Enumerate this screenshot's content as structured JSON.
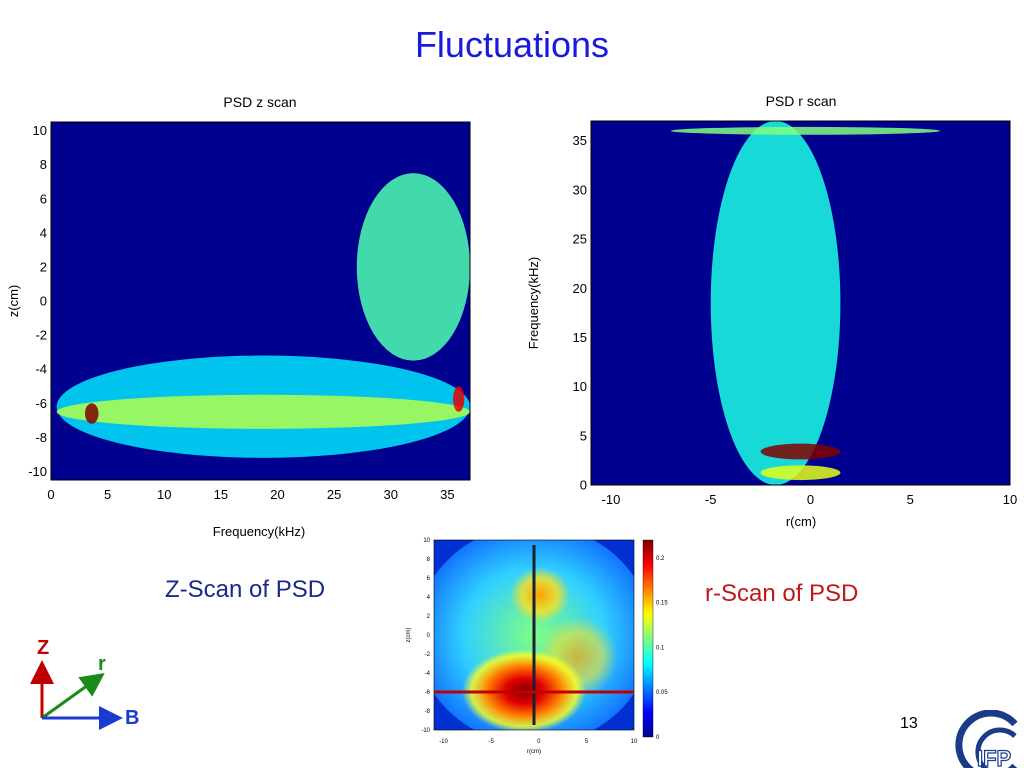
{
  "slide": {
    "title": "Fluctuations",
    "caption_z": "Z-Scan of PSD",
    "caption_r": "r-Scan of PSD",
    "page_number": "13",
    "axes_labels": {
      "z": "Z",
      "r": "r",
      "b": "B"
    },
    "axes_colors": {
      "z": "#c00000",
      "r": "#1a8a1a",
      "b": "#1a3ad0"
    },
    "logo_text": "IFP",
    "colors": {
      "title": "#1a1adc",
      "caption_z": "#1a2a8a",
      "caption_r": "#c01818",
      "jet_background": "#00008f"
    }
  },
  "chart_data": [
    {
      "type": "heatmap",
      "title": "PSD z scan",
      "xlabel": "Frequency(kHz)",
      "ylabel": "z(cm)",
      "xlim": [
        0,
        37
      ],
      "ylim": [
        -10.5,
        10.5
      ],
      "xticks": [
        "0",
        "5",
        "10",
        "15",
        "20",
        "25",
        "30",
        "35"
      ],
      "yticks": [
        "10",
        "8",
        "6",
        "4",
        "2",
        "0",
        "-2",
        "-4",
        "-6",
        "-8",
        "-10"
      ],
      "colormap": "jet",
      "features": [
        {
          "name": "edge band",
          "x": [
            0.5,
            37
          ],
          "y": [
            -9.2,
            -3.2
          ],
          "level": 0.35
        },
        {
          "name": "edge band core",
          "x": [
            0.5,
            37
          ],
          "y": [
            -7.5,
            -5.5
          ],
          "level": 0.55
        },
        {
          "name": "upper region",
          "x": [
            27,
            37
          ],
          "y": [
            -3.5,
            7.5
          ],
          "level": 0.45
        },
        {
          "name": "hot spot 3.5kHz",
          "x": [
            3,
            4.2
          ],
          "y": [
            -7.2,
            -6
          ],
          "level": 1.0
        },
        {
          "name": "hot spot 36kHz",
          "x": [
            35.5,
            36.5
          ],
          "y": [
            -6.5,
            -5
          ],
          "level": 0.9
        }
      ]
    },
    {
      "type": "heatmap",
      "title": "PSD r scan",
      "xlabel": "r(cm)",
      "ylabel": "Frequency(kHz)",
      "xlim": [
        -11,
        10
      ],
      "ylim": [
        0,
        37
      ],
      "xticks": [
        "-10",
        "-5",
        "0",
        "5",
        "10"
      ],
      "yticks": [
        "35",
        "30",
        "25",
        "20",
        "15",
        "10",
        "5",
        "0"
      ],
      "colormap": "jet",
      "features": [
        {
          "name": "central column",
          "x": [
            -5,
            1.5
          ],
          "y": [
            0,
            37
          ],
          "level": 0.4
        },
        {
          "name": "36kHz line",
          "x": [
            -7,
            6.5
          ],
          "y": [
            35.6,
            36.4
          ],
          "level": 0.5
        },
        {
          "name": "low-frequency peak",
          "x": [
            -2.5,
            1.5
          ],
          "y": [
            2.6,
            4.2
          ],
          "level": 1.0
        },
        {
          "name": "1kHz band",
          "x": [
            -2.5,
            1.5
          ],
          "y": [
            0.5,
            2
          ],
          "level": 0.6
        }
      ]
    },
    {
      "type": "heatmap",
      "title": "",
      "xlabel": "r(cm)",
      "ylabel": "z(cm)",
      "xlim": [
        -11,
        10
      ],
      "ylim": [
        -10,
        10
      ],
      "xticks": [
        "-10",
        "-5",
        "0",
        "5",
        "10"
      ],
      "yticks": [
        "10",
        "8",
        "6",
        "4",
        "2",
        "0",
        "-2",
        "-4",
        "-6",
        "-8",
        "-10"
      ],
      "colormap": "jet",
      "colorbar": {
        "ticks": [
          "0.2",
          "0.15",
          "0.1",
          "0.05",
          "0"
        ],
        "range": [
          0,
          0.22
        ]
      },
      "scan_lines": {
        "vertical_r": -0.5,
        "horizontal_z": -6,
        "vertical_color": "#1a2030",
        "horizontal_color": "#c00000"
      }
    }
  ]
}
